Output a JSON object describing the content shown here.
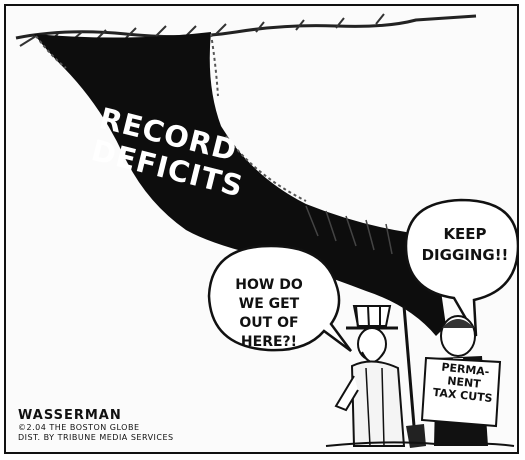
{
  "cartoon": {
    "hole_label": "RECORD\nDEFICITS",
    "left_speech": "HOW DO\nWE GET\nOUT OF\nHERE?!",
    "right_speech": "KEEP\nDIGGING!!",
    "sign": "PERMA-\nNENT\nTAX CUTS",
    "signature": {
      "artist": "WASSERMAN",
      "copyright": "©2.04 THE BOSTON GLOBE",
      "distribution": "DIST. BY TRIBUNE MEDIA SERVICES"
    }
  }
}
